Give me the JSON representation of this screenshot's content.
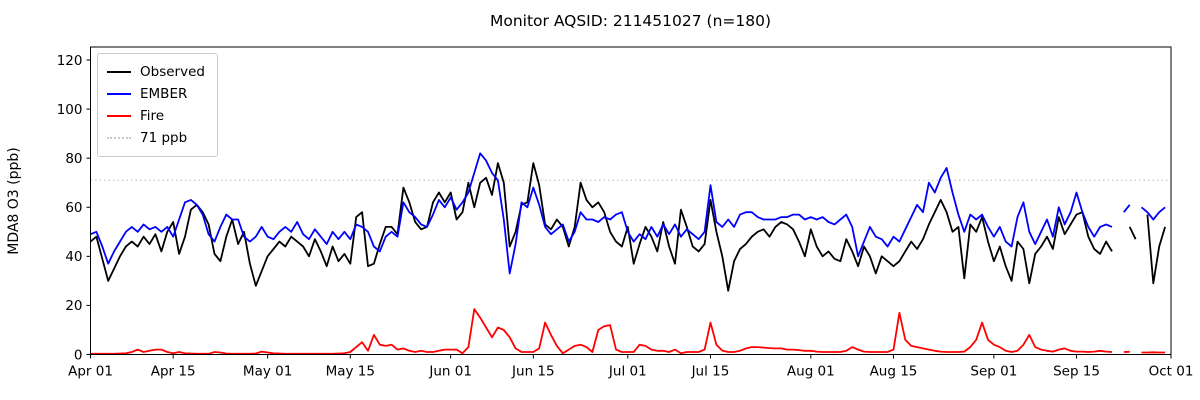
{
  "title": "Monitor AQSID: 211451027 (n=180)",
  "ylabel": "MDA8 O3 (ppb)",
  "legend": {
    "entries": [
      {
        "label": "Observed",
        "color": "#000000",
        "style": "solid"
      },
      {
        "label": "EMBER",
        "color": "#0000ff",
        "style": "solid"
      },
      {
        "label": "Fire",
        "color": "#ff0000",
        "style": "solid"
      },
      {
        "label": "71 ppb",
        "color": "#c9c9c9",
        "style": "dotted"
      }
    ]
  },
  "chart_data": {
    "type": "line",
    "title": "Monitor AQSID: 211451027 (n=180)",
    "xlabel": "",
    "ylabel": "MDA8 O3 (ppb)",
    "grid": false,
    "legend_position": "upper left",
    "x_axis": {
      "start": "Apr 01",
      "end": "Oct 01",
      "domain_days": 183,
      "tick_labels": [
        "Apr 01",
        "Apr 15",
        "May 01",
        "May 15",
        "Jun 01",
        "Jun 15",
        "Jul 01",
        "Jul 15",
        "Aug 01",
        "Aug 15",
        "Sep 01",
        "Sep 15",
        "Oct 01"
      ],
      "tick_day_positions": [
        0,
        14,
        30,
        44,
        61,
        75,
        91,
        105,
        122,
        136,
        153,
        167,
        183
      ]
    },
    "y_axis": {
      "ticks": [
        0,
        20,
        40,
        60,
        80,
        100,
        120
      ],
      "lim": [
        0,
        125.3
      ]
    },
    "reference_line": {
      "value": 71,
      "label": "71 ppb",
      "color": "#c9c9c9",
      "style": "dotted"
    },
    "series": [
      {
        "name": "Observed",
        "color": "#000000",
        "values": [
          46,
          48,
          39,
          30,
          35,
          40,
          44,
          46,
          44,
          48,
          45,
          49,
          42,
          50,
          54,
          41,
          48,
          59,
          61,
          58,
          53,
          41,
          38,
          48,
          55,
          45,
          50,
          37,
          28,
          34,
          40,
          43,
          46,
          44,
          48,
          46,
          44,
          40,
          47,
          42,
          36,
          44,
          38,
          41,
          37,
          56,
          58,
          36,
          37,
          45,
          52,
          52,
          49,
          68,
          62,
          54,
          51,
          52,
          62,
          66,
          62,
          66,
          55,
          58,
          70,
          60,
          70,
          72,
          65,
          78,
          70,
          44,
          50,
          61,
          62,
          78,
          69,
          53,
          51,
          55,
          52,
          44,
          52,
          70,
          63,
          60,
          62,
          58,
          50,
          46,
          44,
          52,
          37,
          45,
          52,
          48,
          42,
          54,
          44,
          37,
          59,
          52,
          44,
          42,
          45,
          63,
          50,
          40,
          26,
          38,
          43,
          45,
          48,
          50,
          51,
          48,
          52,
          54,
          53,
          51,
          46,
          40,
          51,
          44,
          40,
          42,
          39,
          38,
          47,
          42,
          36,
          44,
          40,
          33,
          40,
          38,
          36,
          38,
          42,
          46,
          43,
          47,
          53,
          58,
          63,
          58,
          50,
          52,
          31,
          53,
          50,
          56,
          46,
          38,
          44,
          36,
          30,
          46,
          43,
          29,
          41,
          44,
          48,
          43,
          56,
          49,
          53,
          57,
          58,
          48,
          43,
          41,
          46,
          42,
          null,
          null,
          52,
          47,
          null,
          57,
          29,
          44,
          52
        ]
      },
      {
        "name": "EMBER",
        "color": "#0000ff",
        "values": [
          49,
          50,
          44,
          37,
          42,
          46,
          50,
          52,
          50,
          53,
          51,
          52,
          50,
          52,
          48,
          55,
          62,
          63,
          61,
          57,
          49,
          46,
          52,
          57,
          55,
          55,
          48,
          46,
          48,
          52,
          48,
          47,
          50,
          52,
          50,
          54,
          49,
          47,
          51,
          48,
          45,
          50,
          47,
          50,
          47,
          53,
          52,
          50,
          44,
          42,
          48,
          50,
          48,
          62,
          58,
          56,
          53,
          52,
          57,
          63,
          60,
          64,
          59,
          62,
          66,
          74,
          82,
          79,
          74,
          71,
          55,
          33,
          45,
          62,
          60,
          68,
          61,
          52,
          49,
          51,
          53,
          46,
          50,
          58,
          55,
          55,
          54,
          56,
          55,
          57,
          58,
          50,
          46,
          49,
          47,
          52,
          48,
          53,
          49,
          53,
          48,
          51,
          49,
          47,
          50,
          69,
          54,
          52,
          55,
          52,
          57,
          58,
          58,
          56,
          55,
          55,
          55,
          56,
          56,
          57,
          57,
          55,
          56,
          55,
          56,
          54,
          53,
          55,
          57,
          52,
          40,
          46,
          52,
          48,
          47,
          44,
          48,
          46,
          51,
          56,
          61,
          58,
          70,
          66,
          72,
          76,
          66,
          57,
          50,
          57,
          55,
          57,
          52,
          48,
          52,
          46,
          44,
          56,
          62,
          50,
          45,
          50,
          55,
          48,
          60,
          53,
          58,
          66,
          58,
          52,
          48,
          52,
          53,
          52,
          null,
          58,
          61,
          null,
          60,
          58,
          55,
          58,
          60
        ]
      },
      {
        "name": "Fire",
        "color": "#ff0000",
        "values": [
          0.3,
          0.3,
          0.3,
          0.3,
          0.3,
          0.4,
          0.5,
          1,
          2,
          1,
          1.5,
          2,
          2,
          1,
          0.5,
          1,
          0.5,
          0.4,
          0.3,
          0.3,
          0.3,
          1,
          0.8,
          0.4,
          0.3,
          0.3,
          0.3,
          0.3,
          0.4,
          1.2,
          0.8,
          0.5,
          0.4,
          0.3,
          0.3,
          0.3,
          0.3,
          0.3,
          0.3,
          0.3,
          0.3,
          0.3,
          0.4,
          0.5,
          1,
          3,
          5,
          1.5,
          8,
          4,
          3.5,
          4,
          2,
          2.5,
          1.5,
          1,
          1.5,
          1,
          1,
          1.5,
          2,
          2,
          2,
          0.5,
          3,
          18.5,
          15,
          11,
          7,
          11,
          10,
          7,
          2.5,
          1,
          1,
          1,
          2.5,
          13,
          8,
          3.5,
          0.5,
          2,
          3.5,
          4,
          3,
          1,
          10,
          11.5,
          12,
          2,
          1,
          1,
          1,
          4,
          3.5,
          2,
          1.5,
          1.5,
          1,
          2,
          0.5,
          1,
          1,
          1,
          2,
          13,
          4,
          1.6,
          1,
          1,
          1.5,
          2.5,
          3,
          3,
          2.8,
          2.6,
          2.5,
          2.5,
          2,
          2,
          1.8,
          1.5,
          1.5,
          1.2,
          1,
          1,
          1,
          1,
          1.5,
          3,
          2,
          1.2,
          1,
          1,
          1,
          1,
          2,
          17,
          6,
          3.5,
          3,
          2.5,
          2,
          1.5,
          1.2,
          1,
          1,
          1,
          1.2,
          3,
          6,
          13,
          6,
          4,
          3,
          1.5,
          1,
          1.5,
          4,
          8,
          3,
          2,
          1.5,
          1.2,
          2,
          2.5,
          1.5,
          1.2,
          1.2,
          1,
          1.2,
          1.5,
          1.2,
          1,
          null,
          1,
          1.1,
          null,
          0.8,
          0.8,
          0.9,
          0.8,
          0.8
        ]
      }
    ]
  }
}
